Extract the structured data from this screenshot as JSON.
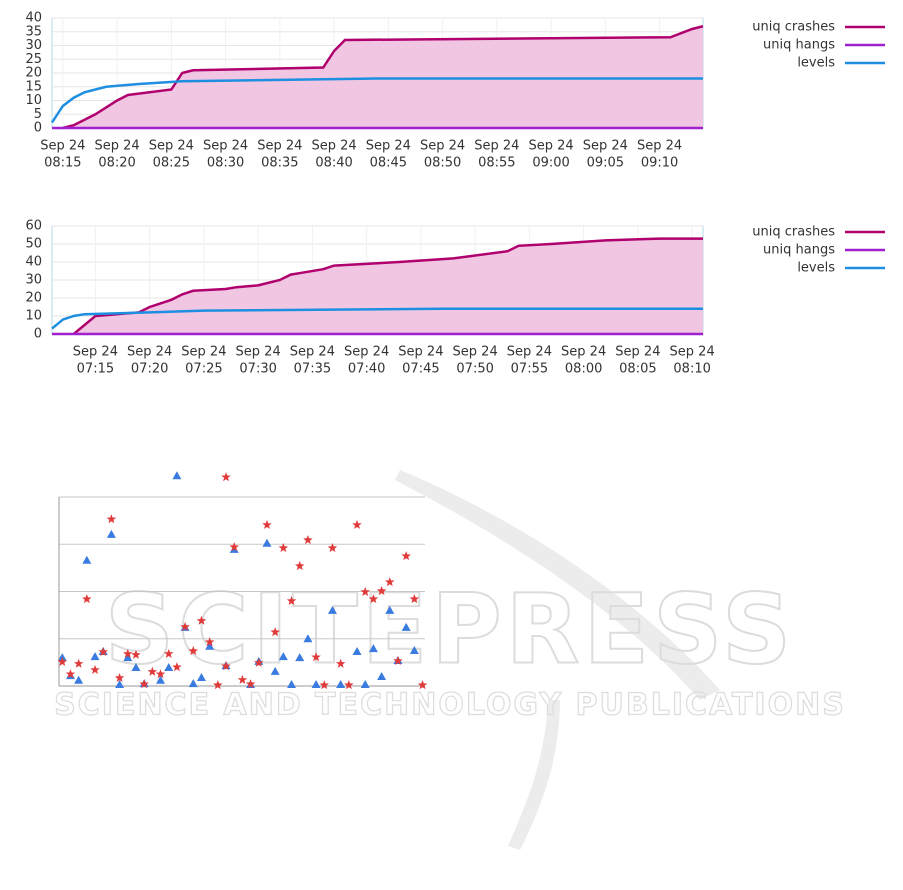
{
  "chart_data": [
    {
      "type": "line",
      "xlim": [
        "08:14",
        "09:14"
      ],
      "ylim": [
        0,
        40
      ],
      "yticks": [
        0,
        5,
        10,
        15,
        20,
        25,
        30,
        35,
        40
      ],
      "grid": true,
      "legend": "right",
      "xticks": [
        {
          "value": "08:15",
          "label": [
            "Sep 24",
            "08:15"
          ]
        },
        {
          "value": "08:20",
          "label": [
            "Sep 24",
            "08:20"
          ]
        },
        {
          "value": "08:25",
          "label": [
            "Sep 24",
            "08:25"
          ]
        },
        {
          "value": "08:30",
          "label": [
            "Sep 24",
            "08:30"
          ]
        },
        {
          "value": "08:35",
          "label": [
            "Sep 24",
            "08:35"
          ]
        },
        {
          "value": "08:40",
          "label": [
            "Sep 24",
            "08:40"
          ]
        },
        {
          "value": "08:45",
          "label": [
            "Sep 24",
            "08:45"
          ]
        },
        {
          "value": "08:50",
          "label": [
            "Sep 24",
            "08:50"
          ]
        },
        {
          "value": "08:55",
          "label": [
            "Sep 24",
            "08:55"
          ]
        },
        {
          "value": "09:00",
          "label": [
            "Sep 24",
            "09:00"
          ]
        },
        {
          "value": "09:05",
          "label": [
            "Sep 24",
            "09:05"
          ]
        },
        {
          "value": "09:10",
          "label": [
            "Sep 24",
            "09:10"
          ]
        }
      ],
      "series": [
        {
          "name": "uniq crashes",
          "color": "#b0006e",
          "fill": "#f0c6e2",
          "x": [
            "08:15",
            "08:16",
            "08:17",
            "08:18",
            "08:20",
            "08:21",
            "08:25",
            "08:26",
            "08:27",
            "08:39",
            "08:40",
            "08:41",
            "09:11",
            "09:13",
            "09:14"
          ],
          "values": [
            0,
            1,
            3,
            5,
            10,
            12,
            14,
            20,
            21,
            22,
            28,
            32,
            33,
            36,
            37
          ]
        },
        {
          "name": "uniq hangs",
          "color": "#a020d0",
          "x": [
            "08:14",
            "09:14"
          ],
          "values": [
            0,
            0
          ]
        },
        {
          "name": "levels",
          "color": "#1e8fe0",
          "x": [
            "08:14",
            "08:15",
            "08:16",
            "08:17",
            "08:18",
            "08:19",
            "08:22",
            "08:26",
            "08:44",
            "09:14"
          ],
          "values": [
            2,
            8,
            11,
            13,
            14,
            15,
            16,
            17,
            18,
            18
          ]
        }
      ]
    },
    {
      "type": "line",
      "xlim": [
        "07:11",
        "08:11"
      ],
      "ylim": [
        0,
        60
      ],
      "yticks": [
        0,
        10,
        20,
        30,
        40,
        50,
        60
      ],
      "grid": true,
      "legend": "right",
      "xticks": [
        {
          "value": "07:15",
          "label": [
            "Sep 24",
            "07:15"
          ]
        },
        {
          "value": "07:20",
          "label": [
            "Sep 24",
            "07:20"
          ]
        },
        {
          "value": "07:25",
          "label": [
            "Sep 24",
            "07:25"
          ]
        },
        {
          "value": "07:30",
          "label": [
            "Sep 24",
            "07:30"
          ]
        },
        {
          "value": "07:35",
          "label": [
            "Sep 24",
            "07:35"
          ]
        },
        {
          "value": "07:40",
          "label": [
            "Sep 24",
            "07:40"
          ]
        },
        {
          "value": "07:45",
          "label": [
            "Sep 24",
            "07:45"
          ]
        },
        {
          "value": "07:50",
          "label": [
            "Sep 24",
            "07:50"
          ]
        },
        {
          "value": "07:55",
          "label": [
            "Sep 24",
            "07:55"
          ]
        },
        {
          "value": "08:00",
          "label": [
            "Sep 24",
            "08:00"
          ]
        },
        {
          "value": "08:05",
          "label": [
            "Sep 24",
            "08:05"
          ]
        },
        {
          "value": "08:10",
          "label": [
            "Sep 24",
            "08:10"
          ]
        }
      ],
      "series": [
        {
          "name": "uniq crashes",
          "color": "#b0006e",
          "fill": "#f0c6e2",
          "x": [
            "07:13",
            "07:14",
            "07:15",
            "07:17",
            "07:19",
            "07:20",
            "07:21",
            "07:22",
            "07:23",
            "07:24",
            "07:27",
            "07:28",
            "07:30",
            "07:32",
            "07:33",
            "07:34",
            "07:36",
            "07:37",
            "07:43",
            "07:48",
            "07:53",
            "07:54",
            "07:57",
            "08:02",
            "08:07",
            "08:11"
          ],
          "values": [
            0,
            5,
            10,
            11,
            12,
            15,
            17,
            19,
            22,
            24,
            25,
            26,
            27,
            30,
            33,
            34,
            36,
            38,
            40,
            42,
            46,
            49,
            50,
            52,
            53,
            53
          ]
        },
        {
          "name": "uniq hangs",
          "color": "#a020d0",
          "x": [
            "07:11",
            "08:11"
          ],
          "values": [
            0,
            0
          ]
        },
        {
          "name": "levels",
          "color": "#1e8fe0",
          "x": [
            "07:11",
            "07:12",
            "07:13",
            "07:14",
            "07:20",
            "07:25",
            "07:47",
            "08:11"
          ],
          "values": [
            3,
            8,
            10,
            11,
            12,
            13,
            14,
            14
          ]
        }
      ]
    },
    {
      "type": "scatter",
      "xlim": [
        -0.4,
        44.3
      ],
      "ylim": [
        0,
        4.5
      ],
      "grid_lines": [
        1,
        2,
        3,
        4
      ],
      "series": [
        {
          "marker": "triangle",
          "color": "#3a7be0",
          "x": [
            0,
            1,
            2,
            3,
            4,
            5,
            6,
            7,
            8,
            9,
            10,
            12,
            13,
            14,
            15,
            16,
            17,
            18,
            20,
            21,
            23,
            24,
            25,
            26,
            27,
            28,
            29,
            30,
            31,
            33,
            34,
            36,
            37,
            38,
            39,
            40,
            41,
            42,
            43
          ],
          "values": [
            0.59,
            0.21,
            0.11,
            2.65,
            0.61,
            0.72,
            3.2,
            0.02,
            0.59,
            0.38,
            0.04,
            0.11,
            0.38,
            4.44,
            1.23,
            0.04,
            0.17,
            0.83,
            0.42,
            2.88,
            0.02,
            0.51,
            3.01,
            0.3,
            0.61,
            0.02,
            0.59,
            0.99,
            0.02,
            1.59,
            0.02,
            0.72,
            0.02,
            0.78,
            0.19,
            1.59,
            0.53,
            1.23,
            0.74
          ]
        },
        {
          "marker": "star",
          "color": "#e03a3a",
          "x": [
            0,
            1,
            2,
            3,
            4,
            5,
            6,
            7,
            8,
            9,
            10,
            11,
            12,
            13,
            14,
            15,
            16,
            17,
            18,
            19,
            20,
            20,
            21,
            22,
            23,
            24,
            25,
            26,
            27,
            28,
            29,
            30,
            31,
            32,
            33,
            34,
            35,
            36,
            37,
            38,
            39,
            40,
            41,
            42,
            43,
            44
          ],
          "values": [
            0.51,
            0.25,
            0.47,
            1.84,
            0.34,
            0.72,
            3.53,
            0.17,
            0.68,
            0.66,
            0.04,
            0.3,
            0.25,
            0.68,
            0.4,
            1.25,
            0.74,
            1.38,
            0.93,
            0.02,
            4.42,
            0.42,
            2.94,
            0.13,
            0.04,
            0.49,
            3.41,
            1.14,
            2.92,
            1.8,
            2.54,
            3.09,
            0.61,
            0.02,
            2.92,
            0.47,
            0.02,
            3.41,
            1.99,
            1.84,
            2.01,
            2.2,
            0.53,
            2.75,
            1.84,
            0.02
          ]
        }
      ]
    }
  ],
  "watermark": {
    "title": "SCITEPRESS",
    "subtitle": "SCIENCE AND TECHNOLOGY PUBLICATIONS"
  }
}
